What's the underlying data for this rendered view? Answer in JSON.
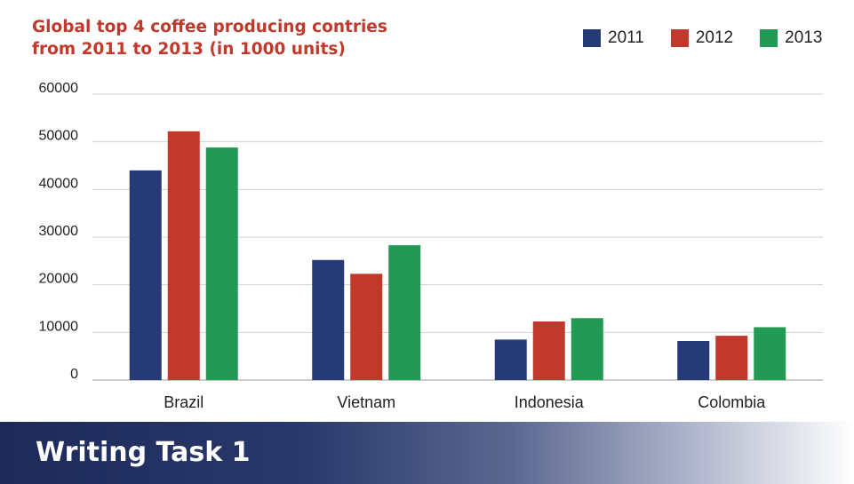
{
  "chart_data": {
    "type": "bar",
    "title_lines": [
      "Global top 4 coffee producing contries",
      "from 2011 to 2013 (in 1000 units)"
    ],
    "categories": [
      "Brazil",
      "Vietnam",
      "Indonesia",
      "Colombia"
    ],
    "series": [
      {
        "name": "2011",
        "color": "#263a78",
        "values": [
          44000,
          25200,
          8500,
          8200
        ]
      },
      {
        "name": "2012",
        "color": "#c0392b",
        "values": [
          52200,
          22300,
          12300,
          9300
        ]
      },
      {
        "name": "2013",
        "color": "#229955",
        "values": [
          48800,
          28300,
          13000,
          11100
        ]
      }
    ],
    "ylim": [
      0,
      60000
    ],
    "yticks": [
      0,
      10000,
      20000,
      30000,
      40000,
      50000,
      60000
    ],
    "legend_position": "top-right",
    "grid": true
  },
  "banner": {
    "label": "Writing Task 1"
  }
}
